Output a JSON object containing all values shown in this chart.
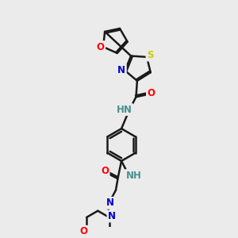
{
  "bg_color": "#ebebeb",
  "bond_color": "#1a1a1a",
  "atom_colors": {
    "O": "#ff0000",
    "N": "#0000cc",
    "S": "#cccc00",
    "H": "#4a9090",
    "C": "#1a1a1a"
  },
  "bond_width": 1.8,
  "font_size": 8.5
}
